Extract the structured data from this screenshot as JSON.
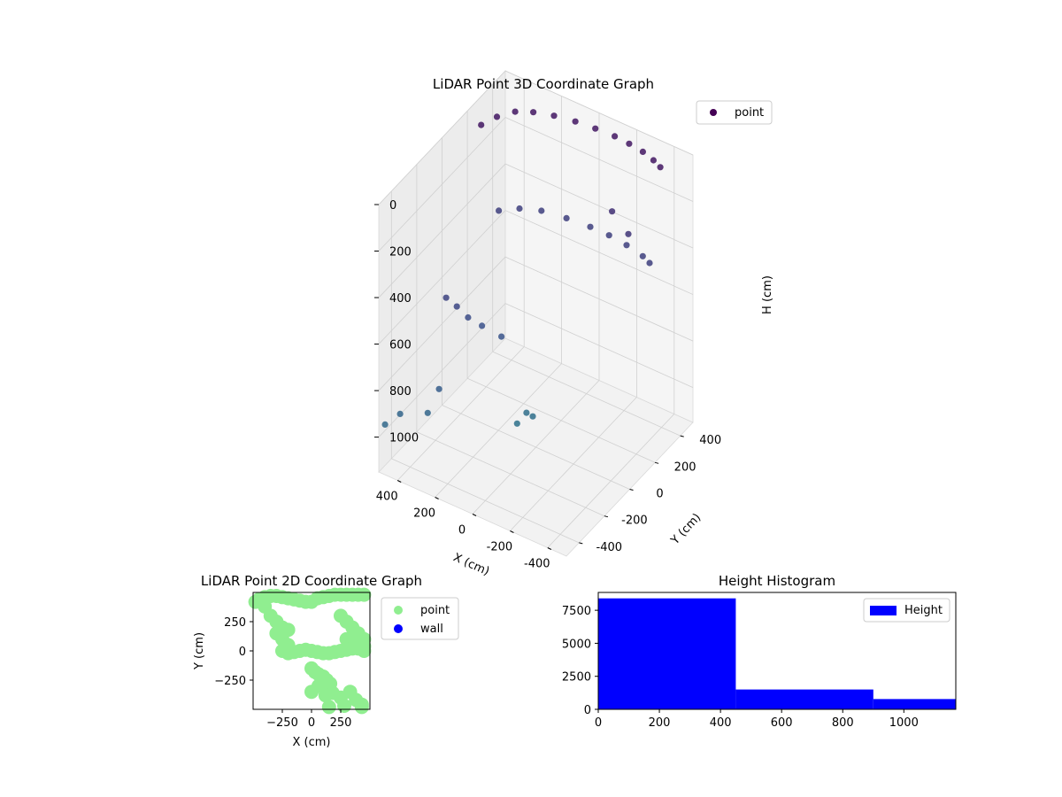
{
  "chart_data": [
    {
      "type": "scatter",
      "dims": 3,
      "title": "LiDAR Point 3D Coordinate Graph",
      "xlabel": "X (cm)",
      "ylabel": "Y (cm)",
      "zlabel": "H (cm)",
      "xlim": [
        -500,
        500
      ],
      "ylim": [
        -500,
        500
      ],
      "zlim": [
        1150,
        0
      ],
      "z_inverted": true,
      "x_ticks": [
        -400,
        -200,
        0,
        200,
        400
      ],
      "y_ticks": [
        -400,
        -200,
        0,
        200,
        400
      ],
      "z_ticks": [
        0,
        200,
        400,
        600,
        800,
        1000
      ],
      "grid": true,
      "legend": {
        "placement": "upper-right",
        "entries": [
          "point"
        ]
      },
      "colormap": "viridis",
      "colormap_colors": [
        "#440154",
        "#3b528b",
        "#21918c",
        "#5ec962",
        "#fde725"
      ],
      "series": [
        {
          "name": "point",
          "color": "#440154",
          "structure": "vertical ring wall (radius ~360 cm, ~45 to 450 cm) funneling to a narrow base near (50, 0, 1020)",
          "x": [
            -380,
            -330,
            -260,
            -180,
            -100,
            0,
            100,
            200,
            290,
            360,
            410,
            440,
            -350,
            -300,
            -200,
            -100,
            0,
            120,
            240,
            330,
            400,
            150,
            220,
            260,
            300,
            330,
            50,
            80,
            30,
            -150,
            -250,
            280,
            320,
            420,
            480
          ],
          "y": [
            420,
            440,
            460,
            470,
            475,
            470,
            460,
            440,
            410,
            370,
            300,
            220,
            380,
            400,
            420,
            430,
            430,
            420,
            400,
            360,
            300,
            -50,
            -100,
            -150,
            -180,
            -220,
            0,
            -30,
            20,
            380,
            360,
            -350,
            -380,
            -450,
            -480
          ],
          "z": [
            50,
            50,
            50,
            50,
            50,
            50,
            50,
            50,
            50,
            50,
            50,
            50,
            450,
            450,
            450,
            450,
            450,
            450,
            450,
            450,
            450,
            700,
            650,
            600,
            550,
            500,
            1020,
            1060,
            1040,
            300,
            350,
            800,
            900,
            900,
            950
          ]
        }
      ]
    },
    {
      "type": "scatter",
      "dims": 2,
      "title": "LiDAR Point 2D Coordinate Graph",
      "xlabel": "X (cm)",
      "ylabel": "Y (cm)",
      "xlim": [
        -500,
        500
      ],
      "ylim": [
        -500,
        500
      ],
      "x_ticks": [
        -250,
        0,
        250
      ],
      "y_ticks": [
        -250,
        0,
        250
      ],
      "legend": {
        "placement": "outside-right",
        "entries": [
          "point",
          "wall"
        ]
      },
      "series": [
        {
          "name": "point",
          "color": "#90ee90",
          "x": [
            -480,
            -450,
            -400,
            -350,
            -300,
            -250,
            -200,
            -150,
            -100,
            -50,
            0,
            50,
            100,
            150,
            200,
            250,
            300,
            350,
            400,
            450,
            -400,
            -350,
            -300,
            -250,
            -200,
            250,
            300,
            350,
            400,
            450,
            -300,
            -250,
            -200,
            300,
            350,
            400,
            450,
            -250,
            -200,
            -150,
            -100,
            -50,
            0,
            50,
            100,
            150,
            200,
            250,
            300,
            350,
            400,
            450,
            0,
            30,
            60,
            100,
            130,
            160,
            60,
            110,
            0,
            120,
            180,
            250,
            330,
            380,
            430,
            150,
            280,
            430
          ],
          "y": [
            420,
            440,
            460,
            470,
            470,
            460,
            450,
            440,
            430,
            420,
            420,
            450,
            460,
            470,
            480,
            480,
            480,
            480,
            480,
            480,
            380,
            300,
            250,
            200,
            180,
            300,
            250,
            200,
            150,
            100,
            150,
            100,
            50,
            100,
            50,
            20,
            0,
            0,
            -20,
            -10,
            0,
            10,
            0,
            -10,
            -20,
            -20,
            -10,
            0,
            10,
            20,
            30,
            40,
            -150,
            -180,
            -200,
            -220,
            -250,
            -280,
            -300,
            -280,
            -350,
            -380,
            -360,
            -400,
            -350,
            -420,
            -460,
            -480,
            -470,
            -480
          ],
          "z": []
        },
        {
          "name": "wall",
          "color": "#0000ff",
          "x": [],
          "y": []
        }
      ]
    },
    {
      "type": "bar",
      "subtype": "histogram",
      "title": "Height Histogram",
      "xlabel": "",
      "ylabel": "",
      "xlim": [
        0,
        1170
      ],
      "ylim": [
        0,
        8850
      ],
      "x_ticks": [
        0,
        200,
        400,
        600,
        800,
        1000
      ],
      "y_ticks": [
        0,
        2500,
        5000,
        7500
      ],
      "legend": {
        "placement": "upper-right",
        "entries": [
          "Height"
        ]
      },
      "bin_edges": [
        0,
        450,
        900,
        1170
      ],
      "values": [
        8400,
        1500,
        780
      ],
      "series": [
        {
          "name": "Height",
          "color": "#0000ff",
          "values": [
            8400,
            1500,
            780
          ]
        }
      ]
    }
  ]
}
